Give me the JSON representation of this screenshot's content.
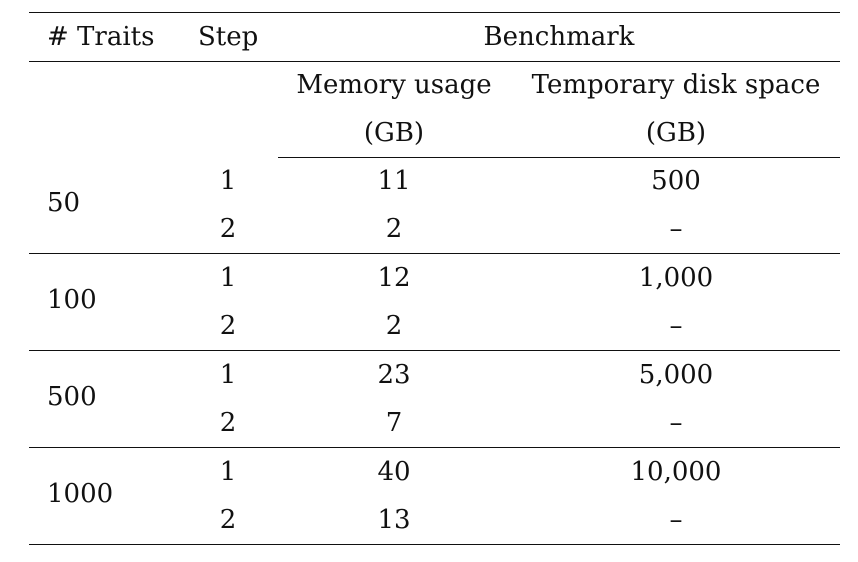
{
  "table": {
    "headers": {
      "traits": "# Traits",
      "step": "Step",
      "benchmark": "Benchmark",
      "memory_line1": "Memory usage",
      "memory_line2": "(GB)",
      "disk_line1": "Temporary disk space",
      "disk_line2": "(GB)"
    },
    "groups": [
      {
        "traits": "50",
        "rows": [
          {
            "step": "1",
            "memory": "11",
            "disk": "500"
          },
          {
            "step": "2",
            "memory": "2",
            "disk": "–"
          }
        ]
      },
      {
        "traits": "100",
        "rows": [
          {
            "step": "1",
            "memory": "12",
            "disk": "1,000"
          },
          {
            "step": "2",
            "memory": "2",
            "disk": "–"
          }
        ]
      },
      {
        "traits": "500",
        "rows": [
          {
            "step": "1",
            "memory": "23",
            "disk": "5,000"
          },
          {
            "step": "2",
            "memory": "7",
            "disk": "–"
          }
        ]
      },
      {
        "traits": "1000",
        "rows": [
          {
            "step": "1",
            "memory": "40",
            "disk": "10,000"
          },
          {
            "step": "2",
            "memory": "13",
            "disk": "–"
          }
        ]
      }
    ]
  }
}
